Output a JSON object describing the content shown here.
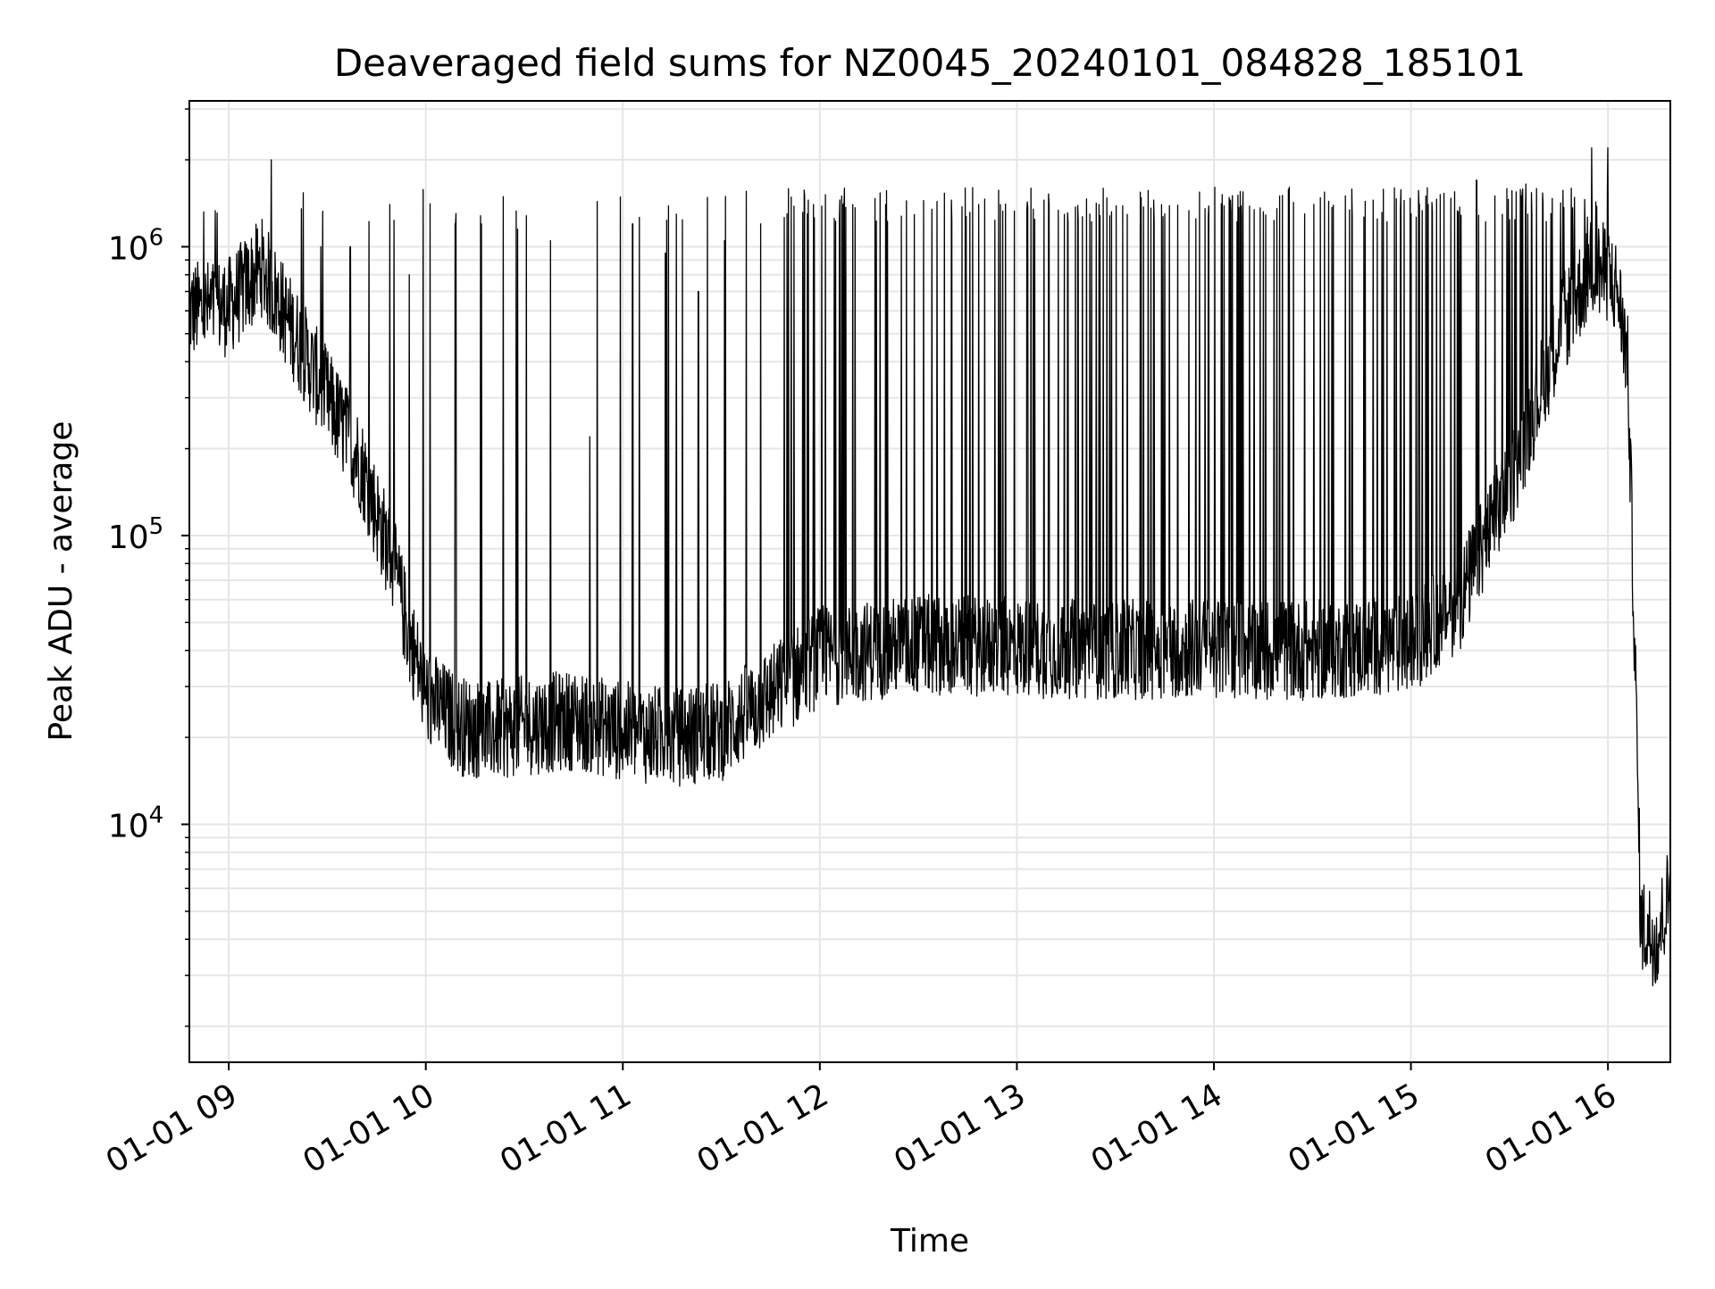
{
  "chart_data": {
    "type": "line",
    "title": "Deaveraged field sums for NZ0045_20240101_084828_185101",
    "xlabel": "Time",
    "ylabel": "Peak ADU - average",
    "y_scale": "log",
    "ylim": [
      1500,
      3200000
    ],
    "xlim": [
      "2024-01-01 08:48",
      "2024-01-01 16:19"
    ],
    "grid": true,
    "line_color": "#000000",
    "x_ticks": [
      {
        "value": "2024-01-01 09:00",
        "label": "01-01 09"
      },
      {
        "value": "2024-01-01 10:00",
        "label": "01-01 10"
      },
      {
        "value": "2024-01-01 11:00",
        "label": "01-01 11"
      },
      {
        "value": "2024-01-01 12:00",
        "label": "01-01 12"
      },
      {
        "value": "2024-01-01 13:00",
        "label": "01-01 13"
      },
      {
        "value": "2024-01-01 14:00",
        "label": "01-01 14"
      },
      {
        "value": "2024-01-01 15:00",
        "label": "01-01 15"
      },
      {
        "value": "2024-01-01 16:00",
        "label": "01-01 16"
      }
    ],
    "y_ticks": [
      {
        "value": 10000,
        "base": "10",
        "exp": "4"
      },
      {
        "value": 100000,
        "base": "10",
        "exp": "5"
      },
      {
        "value": 1000000,
        "base": "10",
        "exp": "6"
      }
    ],
    "series": [
      {
        "baseline": {
          "x": [
            "2024-01-01 08:48",
            "2024-01-01 09:00",
            "2024-01-01 09:10",
            "2024-01-01 09:20",
            "2024-01-01 09:30",
            "2024-01-01 09:40",
            "2024-01-01 09:50",
            "2024-01-01 09:55",
            "2024-01-01 10:00",
            "2024-01-01 10:10",
            "2024-01-01 10:20",
            "2024-01-01 10:30",
            "2024-01-01 10:45",
            "2024-01-01 11:00",
            "2024-01-01 11:15",
            "2024-01-01 11:30",
            "2024-01-01 11:45",
            "2024-01-01 12:00",
            "2024-01-01 12:30",
            "2024-01-01 13:00",
            "2024-01-01 13:30",
            "2024-01-01 14:00",
            "2024-01-01 14:30",
            "2024-01-01 15:00",
            "2024-01-01 15:15",
            "2024-01-01 15:30",
            "2024-01-01 15:45",
            "2024-01-01 15:55",
            "2024-01-01 16:00",
            "2024-01-01 16:03",
            "2024-01-01 16:06",
            "2024-01-01 16:08",
            "2024-01-01 16:10",
            "2024-01-01 16:15",
            "2024-01-01 16:19"
          ],
          "y": [
            600000,
            620000,
            850000,
            500000,
            300000,
            180000,
            80000,
            45000,
            28000,
            22000,
            21000,
            22000,
            23000,
            21000,
            20000,
            21000,
            28000,
            38000,
            42000,
            41000,
            40000,
            41000,
            40000,
            42000,
            60000,
            150000,
            500000,
            850000,
            800000,
            700000,
            400000,
            50000,
            4500,
            4000,
            6000
          ]
        },
        "spikes": {
          "x": [
            "2024-01-01 09:13",
            "2024-01-01 09:28",
            "2024-01-01 09:37",
            "2024-01-01 09:49",
            "2024-01-01 09:55",
            "2024-01-01 10:09",
            "2024-01-01 10:17",
            "2024-01-01 10:28",
            "2024-01-01 10:38",
            "2024-01-01 10:50",
            "2024-01-01 11:03",
            "2024-01-01 11:13",
            "2024-01-01 11:23",
            "2024-01-01 11:31",
            "2024-01-01 11:42",
            "2024-01-01 11:50",
            "2024-01-01 11:58",
            "2024-01-01 12:10",
            "2024-01-01 12:20",
            "2024-01-01 12:40",
            "2024-01-01 12:55",
            "2024-01-01 13:05",
            "2024-01-01 13:25",
            "2024-01-01 13:45",
            "2024-01-01 14:05",
            "2024-01-01 14:20",
            "2024-01-01 14:40",
            "2024-01-01 14:55",
            "2024-01-01 15:05",
            "2024-01-01 15:20",
            "2024-01-01 15:35",
            "2024-01-01 15:55",
            "2024-01-01 16:00"
          ],
          "y": [
            2000000,
            1000000,
            1000000,
            1400000,
            800000,
            1200000,
            1200000,
            1150000,
            1050000,
            220000,
            1200000,
            950000,
            700000,
            1050000,
            1200000,
            1300000,
            1400000,
            1400000,
            1400000,
            1450000,
            1400000,
            1350000,
            1400000,
            1300000,
            1450000,
            1500000,
            1500000,
            1600000,
            1600000,
            1700000,
            1650000,
            2200000,
            2200000
          ]
        }
      }
    ]
  }
}
